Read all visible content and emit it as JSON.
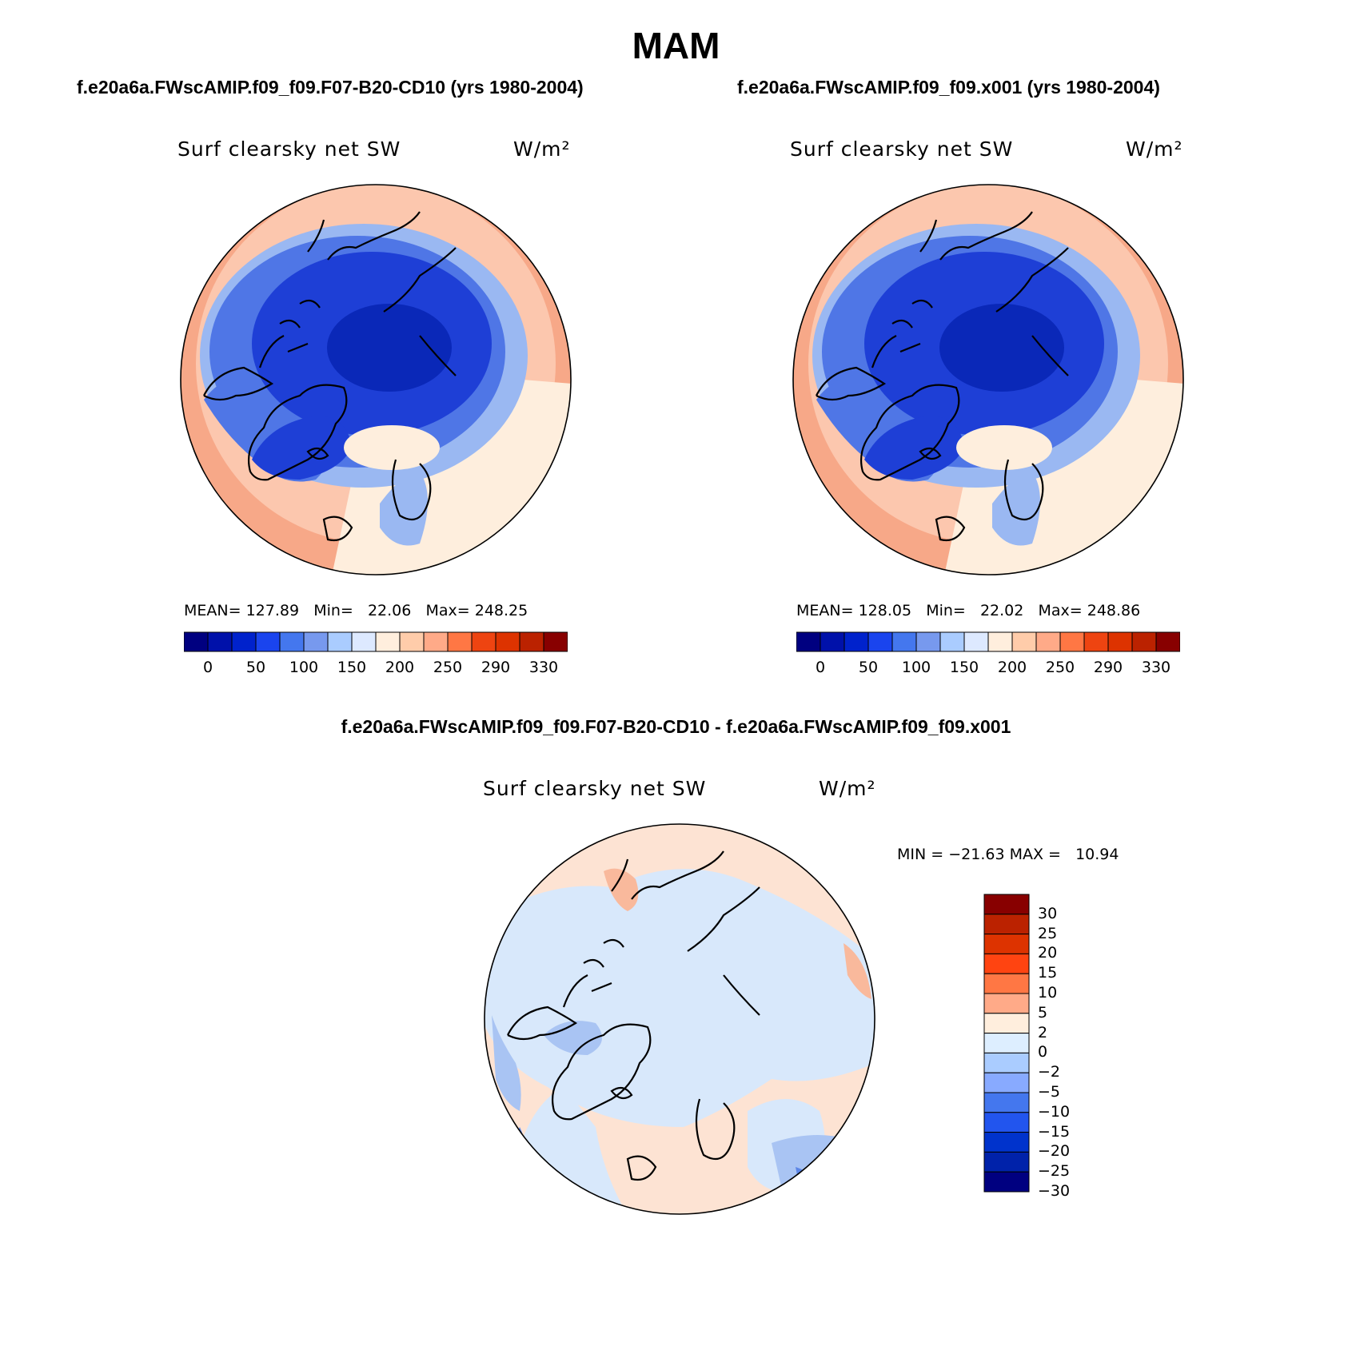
{
  "figure": {
    "season": "MAM"
  },
  "panels": [
    {
      "case_title": "f.e20a6a.FWscAMIP.f09_f09.F07-B20-CD10 (yrs 1980-2004)",
      "variable": "Surf clearsky net SW",
      "units": "W/m²",
      "stats_mean_label": "MEAN=",
      "mean": "127.89",
      "stats_min_label": "Min=",
      "min": "22.06",
      "stats_max_label": "Max=",
      "max": "248.25"
    },
    {
      "case_title": "f.e20a6a.FWscAMIP.f09_f09.x001 (yrs 1980-2004)",
      "variable": "Surf clearsky net SW",
      "units": "W/m²",
      "stats_mean_label": "MEAN=",
      "mean": "128.05",
      "stats_min_label": "Min=",
      "min": "22.02",
      "stats_max_label": "Max=",
      "max": "248.86"
    }
  ],
  "diff_panel": {
    "case_title": "f.e20a6a.FWscAMIP.f09_f09.F07-B20-CD10 - f.e20a6a.FWscAMIP.f09_f09.x001",
    "variable": "Surf clearsky net SW",
    "units": "W/m²",
    "stats_min_label": "MIN =",
    "min": "−21.63",
    "stats_max_label": "MAX =",
    "max": "10.94"
  },
  "colorbar_abs": {
    "colors": [
      "#000080",
      "#0011aa",
      "#0022cc",
      "#1a44ee",
      "#4477ee",
      "#7799ee",
      "#aaccff",
      "#dde9ff",
      "#ffeedd",
      "#ffccaa",
      "#ffaa88",
      "#ff7744",
      "#ee4411",
      "#dd3300",
      "#bb2200",
      "#880000"
    ],
    "tick_labels": [
      "0",
      "50",
      "100",
      "150",
      "200",
      "250",
      "290",
      "330"
    ]
  },
  "colorbar_diff": {
    "colors": [
      "#880000",
      "#bb2200",
      "#dd3300",
      "#ff4411",
      "#ff7744",
      "#ffaa88",
      "#ffeedd",
      "#ddeeff",
      "#aaccff",
      "#88aaff",
      "#4477ee",
      "#2255ee",
      "#0033cc",
      "#0022aa",
      "#000080"
    ],
    "tick_labels": [
      "30",
      "25",
      "20",
      "15",
      "10",
      "5",
      "2",
      "0",
      "−2",
      "−5",
      "−10",
      "−15",
      "−20",
      "−25",
      "−30"
    ]
  },
  "map_palette": {
    "ocean_warm": "#f7a888",
    "ocean_mid": "#fcc7ae",
    "ocean_pale": "#feeedd",
    "ice_light": "#9ab8f2",
    "ice_mid": "#4f76e6",
    "ice_deep": "#1e3fd6",
    "ice_core": "#0a28b8",
    "diff_neutral": "#d8e8fb",
    "diff_pos": "#fde3d3",
    "diff_pos2": "#f9b99c",
    "diff_neg": "#a9c4f3",
    "diff_neg2": "#5c86e6"
  }
}
